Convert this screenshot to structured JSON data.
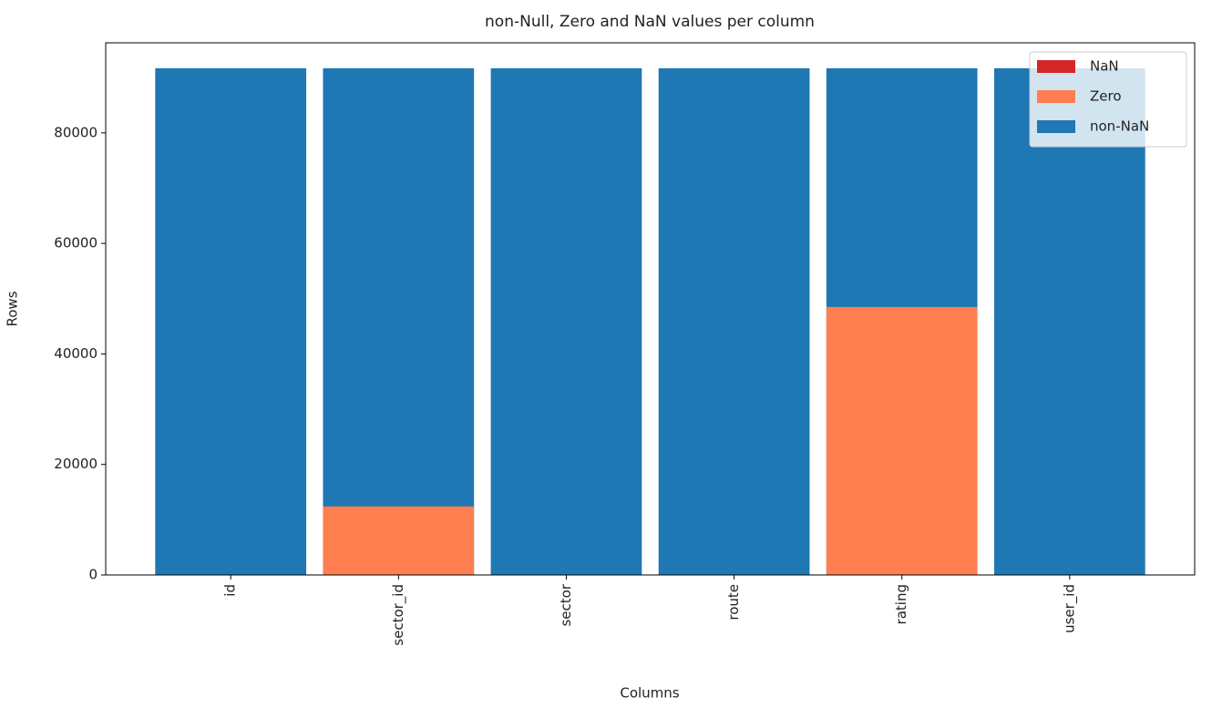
{
  "chart_data": {
    "type": "bar",
    "title": "non-Null, Zero and NaN values per column",
    "x_label": "Columns",
    "y_label": "Rows",
    "categories": [
      "id",
      "sector_id",
      "sector",
      "route",
      "rating",
      "user_id"
    ],
    "series": [
      {
        "name": "NaN",
        "color": "#d62728",
        "values": [
          0,
          0,
          0,
          0,
          0,
          0
        ]
      },
      {
        "name": "Zero",
        "color": "#ff7f50",
        "values": [
          0,
          12400,
          0,
          0,
          48500,
          0
        ]
      },
      {
        "name": "non-NaN",
        "color": "#1f77b4",
        "values": [
          91700,
          91700,
          91700,
          91700,
          91700,
          91700
        ]
      }
    ],
    "ylim": [
      0,
      96300
    ],
    "yticks": [
      0,
      20000,
      40000,
      60000,
      80000
    ],
    "legend": "upper right"
  }
}
